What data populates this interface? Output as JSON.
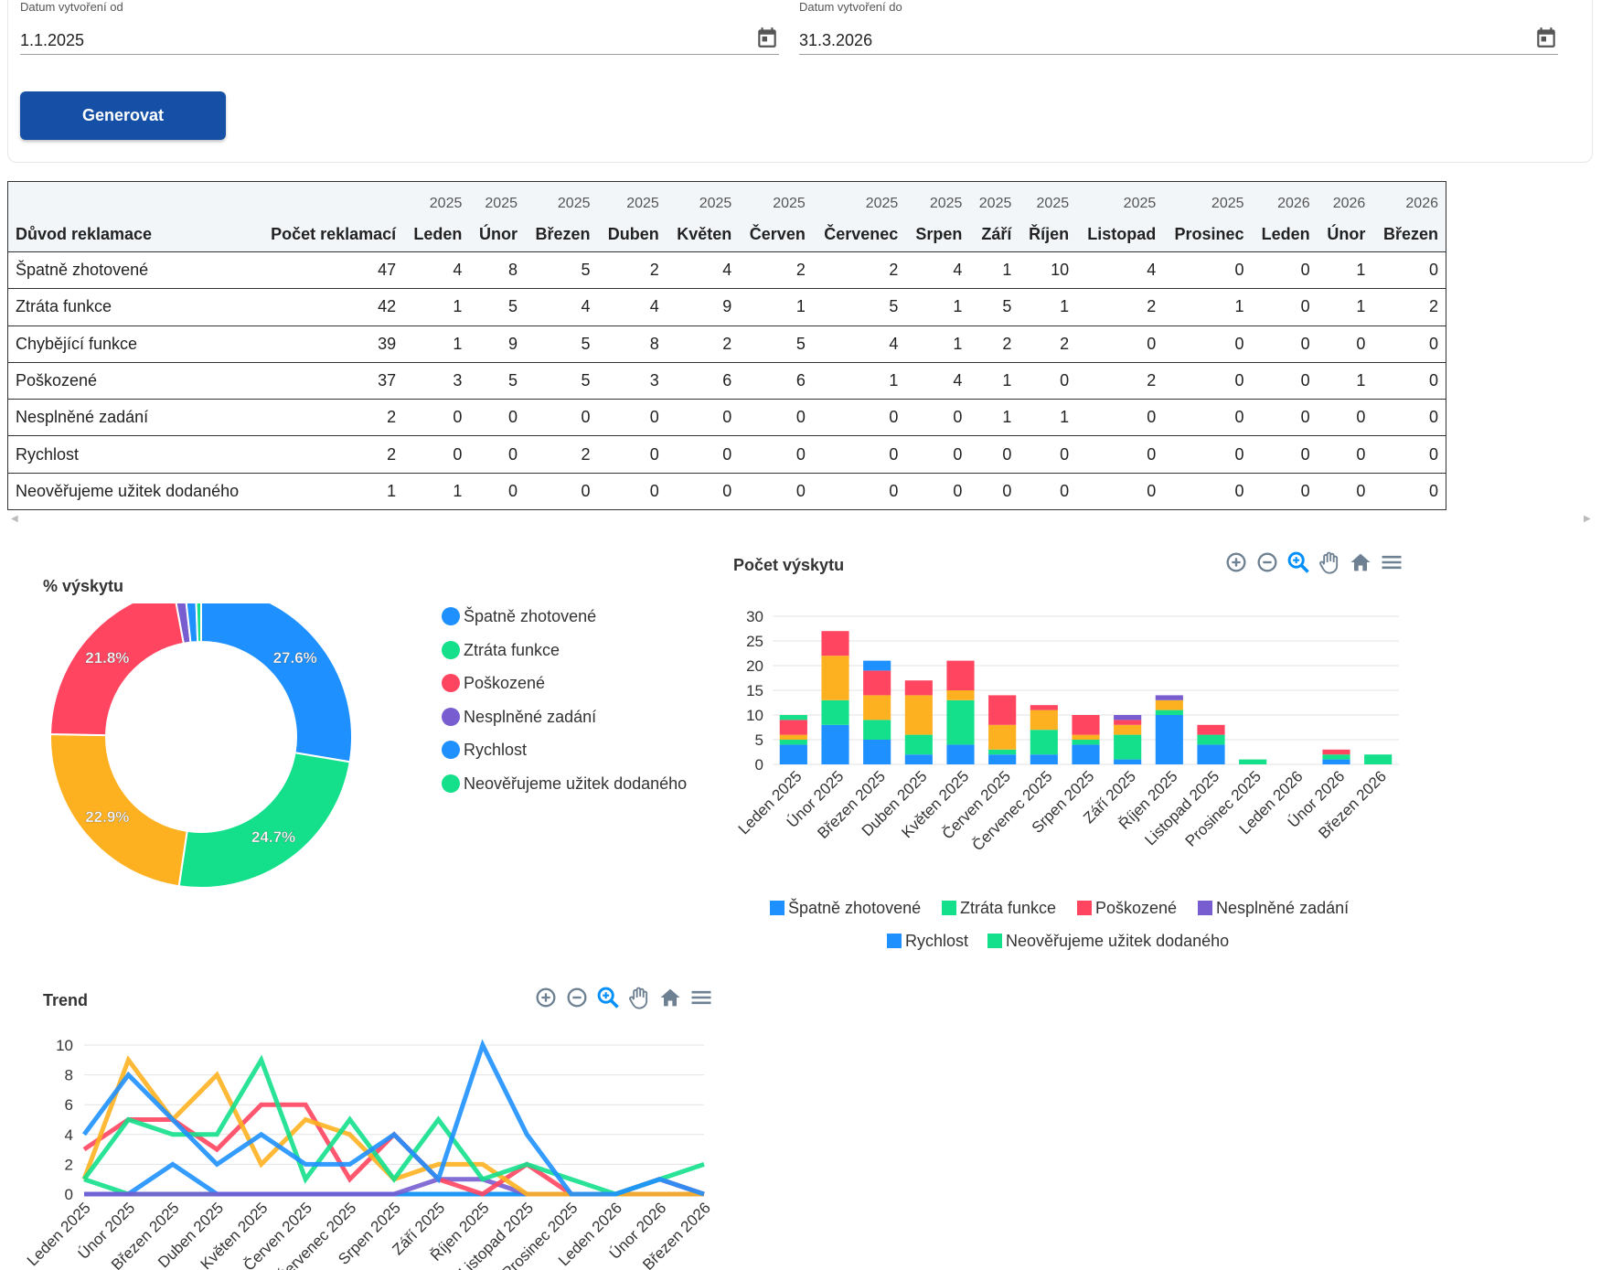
{
  "filters": {
    "from": {
      "label": "Datum vytvoření od",
      "value": "1.1.2025"
    },
    "to": {
      "label": "Datum vytvoření do",
      "value": "31.3.2026"
    },
    "generate_label": "Generovat",
    "calendar_icon": "calendar-icon"
  },
  "table": {
    "reason_header": "Důvod reklamace",
    "count_header": "Počet reklamací",
    "months": [
      {
        "year": "2025",
        "month": "Leden"
      },
      {
        "year": "2025",
        "month": "Únor"
      },
      {
        "year": "2025",
        "month": "Březen"
      },
      {
        "year": "2025",
        "month": "Duben"
      },
      {
        "year": "2025",
        "month": "Květen"
      },
      {
        "year": "2025",
        "month": "Červen"
      },
      {
        "year": "2025",
        "month": "Červenec"
      },
      {
        "year": "2025",
        "month": "Srpen"
      },
      {
        "year": "2025",
        "month": "Září"
      },
      {
        "year": "2025",
        "month": "Říjen"
      },
      {
        "year": "2025",
        "month": "Listopad"
      },
      {
        "year": "2025",
        "month": "Prosinec"
      },
      {
        "year": "2026",
        "month": "Leden"
      },
      {
        "year": "2026",
        "month": "Únor"
      },
      {
        "year": "2026",
        "month": "Březen"
      }
    ],
    "rows": [
      {
        "reason": "Špatně zhotovené",
        "total": "47",
        "values": [
          "4",
          "8",
          "5",
          "2",
          "4",
          "2",
          "2",
          "4",
          "1",
          "10",
          "4",
          "0",
          "0",
          "1",
          "0"
        ]
      },
      {
        "reason": "Ztráta funkce",
        "total": "42",
        "values": [
          "1",
          "5",
          "4",
          "4",
          "9",
          "1",
          "5",
          "1",
          "5",
          "1",
          "2",
          "1",
          "0",
          "1",
          "2"
        ]
      },
      {
        "reason": "Chybějící funkce",
        "total": "39",
        "values": [
          "1",
          "9",
          "5",
          "8",
          "2",
          "5",
          "4",
          "1",
          "2",
          "2",
          "0",
          "0",
          "0",
          "0",
          "0"
        ]
      },
      {
        "reason": "Poškozené",
        "total": "37",
        "values": [
          "3",
          "5",
          "5",
          "3",
          "6",
          "6",
          "1",
          "4",
          "1",
          "0",
          "2",
          "0",
          "0",
          "1",
          "0"
        ]
      },
      {
        "reason": "Nesplněné zadání",
        "total": "2",
        "values": [
          "0",
          "0",
          "0",
          "0",
          "0",
          "0",
          "0",
          "0",
          "1",
          "1",
          "0",
          "0",
          "0",
          "0",
          "0"
        ]
      },
      {
        "reason": "Rychlost",
        "total": "2",
        "values": [
          "0",
          "0",
          "2",
          "0",
          "0",
          "0",
          "0",
          "0",
          "0",
          "0",
          "0",
          "0",
          "0",
          "0",
          "0"
        ]
      },
      {
        "reason": "Neověřujeme užitek dodaného",
        "total": "1",
        "values": [
          "1",
          "0",
          "0",
          "0",
          "0",
          "0",
          "0",
          "0",
          "0",
          "0",
          "0",
          "0",
          "0",
          "0",
          "0"
        ]
      }
    ]
  },
  "toolbar_icons": [
    "zoom-in-icon",
    "zoom-out-icon",
    "selection-zoom-icon",
    "pan-hand-icon",
    "home-icon",
    "menu-icon"
  ],
  "colors": {
    "blue": "#1e90ff",
    "green": "#14e08c",
    "orange": "#feb120",
    "red": "#ff4560",
    "purple": "#775dd0"
  },
  "chart_data": [
    {
      "type": "pie",
      "title": "% výskytu",
      "labels": [
        "Špatně zhotovené",
        "Ztráta funkce",
        "Chybějící funkce",
        "Poškozené",
        "Nesplněné zadání",
        "Rychlost",
        "Neověřujeme užitek dodaného"
      ],
      "values": [
        47,
        42,
        39,
        37,
        2,
        2,
        1
      ],
      "percent_labels": [
        "27.6%",
        "24.7%",
        "22.9%",
        "21.8%",
        "",
        "",
        ""
      ],
      "colors": [
        "#1e90ff",
        "#14e08c",
        "#feb120",
        "#ff4560",
        "#775dd0",
        "#1e90ff",
        "#14e08c"
      ],
      "legend": [
        "Špatně zhotovené",
        "Ztráta funkce",
        "Poškozené",
        "Nesplněné zadání",
        "Rychlost",
        "Neověřujeme užitek dodaného"
      ],
      "legend_colors": [
        "#1e90ff",
        "#14e08c",
        "#ff4560",
        "#775dd0",
        "#1e90ff",
        "#14e08c"
      ],
      "legend_position": "right"
    },
    {
      "type": "bar",
      "stacked": true,
      "title": "Počet výskytu",
      "categories": [
        "Leden 2025",
        "Únor 2025",
        "Březen 2025",
        "Duben 2025",
        "Květen 2025",
        "Červen 2025",
        "Červenec 2025",
        "Srpen 2025",
        "Září 2025",
        "Říjen 2025",
        "Listopad 2025",
        "Prosinec 2025",
        "Leden 2026",
        "Únor 2026",
        "Březen 2026"
      ],
      "series": [
        {
          "name": "Špatně zhotovené",
          "color": "#1e90ff",
          "values": [
            4,
            8,
            5,
            2,
            4,
            2,
            2,
            4,
            1,
            10,
            4,
            0,
            0,
            1,
            0
          ]
        },
        {
          "name": "Ztráta funkce",
          "color": "#14e08c",
          "values": [
            1,
            5,
            4,
            4,
            9,
            1,
            5,
            1,
            5,
            1,
            2,
            1,
            0,
            1,
            2
          ]
        },
        {
          "name": "",
          "color": "#feb120",
          "values": [
            1,
            9,
            5,
            8,
            2,
            5,
            4,
            1,
            2,
            2,
            0,
            0,
            0,
            0,
            0
          ]
        },
        {
          "name": "Poškozené",
          "color": "#ff4560",
          "values": [
            3,
            5,
            5,
            3,
            6,
            6,
            1,
            4,
            1,
            0,
            2,
            0,
            0,
            1,
            0
          ]
        },
        {
          "name": "Nesplněné zadání",
          "color": "#775dd0",
          "values": [
            0,
            0,
            0,
            0,
            0,
            0,
            0,
            0,
            1,
            1,
            0,
            0,
            0,
            0,
            0
          ]
        },
        {
          "name": "Rychlost",
          "color": "#1e90ff",
          "values": [
            0,
            0,
            2,
            0,
            0,
            0,
            0,
            0,
            0,
            0,
            0,
            0,
            0,
            0,
            0
          ]
        },
        {
          "name": "Neověřujeme užitek dodaného",
          "color": "#14e08c",
          "values": [
            1,
            0,
            0,
            0,
            0,
            0,
            0,
            0,
            0,
            0,
            0,
            0,
            0,
            0,
            0
          ]
        }
      ],
      "yticks": [
        "0",
        "5",
        "10",
        "15",
        "20",
        "25",
        "30"
      ],
      "ylim": [
        0,
        30
      ],
      "grid": true,
      "legend_position": "bottom"
    },
    {
      "type": "line",
      "title": "Trend",
      "categories": [
        "Leden 2025",
        "Únor 2025",
        "Březen 2025",
        "Duben 2025",
        "Květen 2025",
        "Červen 2025",
        "Červenec 2025",
        "Srpen 2025",
        "Září 2025",
        "Říjen 2025",
        "Listopad 2025",
        "Prosinec 2025",
        "Leden 2026",
        "Únor 2026",
        "Březen 2026"
      ],
      "series": [
        {
          "name": "Špatně zhotovené",
          "color": "#1e90ff",
          "values": [
            4,
            8,
            5,
            2,
            4,
            2,
            2,
            4,
            1,
            10,
            4,
            0,
            0,
            1,
            0
          ]
        },
        {
          "name": "Ztráta funkce",
          "color": "#14e08c",
          "values": [
            1,
            5,
            4,
            4,
            9,
            1,
            5,
            1,
            5,
            1,
            2,
            1,
            0,
            1,
            2
          ]
        },
        {
          "name": "",
          "color": "#feb120",
          "values": [
            1,
            9,
            5,
            8,
            2,
            5,
            4,
            1,
            2,
            2,
            0,
            0,
            0,
            0,
            0
          ]
        },
        {
          "name": "Poškozené",
          "color": "#ff4560",
          "values": [
            3,
            5,
            5,
            3,
            6,
            6,
            1,
            4,
            1,
            0,
            2,
            0,
            0,
            1,
            0
          ]
        },
        {
          "name": "Nesplněné zadání",
          "color": "#775dd0",
          "values": [
            0,
            0,
            0,
            0,
            0,
            0,
            0,
            0,
            1,
            1,
            0,
            0,
            0,
            0,
            0
          ]
        },
        {
          "name": "Rychlost",
          "color": "#1e90ff",
          "values": [
            0,
            0,
            2,
            0,
            0,
            0,
            0,
            0,
            0,
            0,
            0,
            0,
            0,
            0,
            0
          ]
        },
        {
          "name": "Neověřujeme užitek dodaného",
          "color": "#14e08c",
          "values": [
            1,
            0,
            0,
            0,
            0,
            0,
            0,
            0,
            0,
            0,
            0,
            0,
            0,
            0,
            0
          ]
        }
      ],
      "yticks": [
        "0",
        "2",
        "4",
        "6",
        "8",
        "10"
      ],
      "ylim": [
        0,
        10
      ],
      "grid": true
    }
  ]
}
